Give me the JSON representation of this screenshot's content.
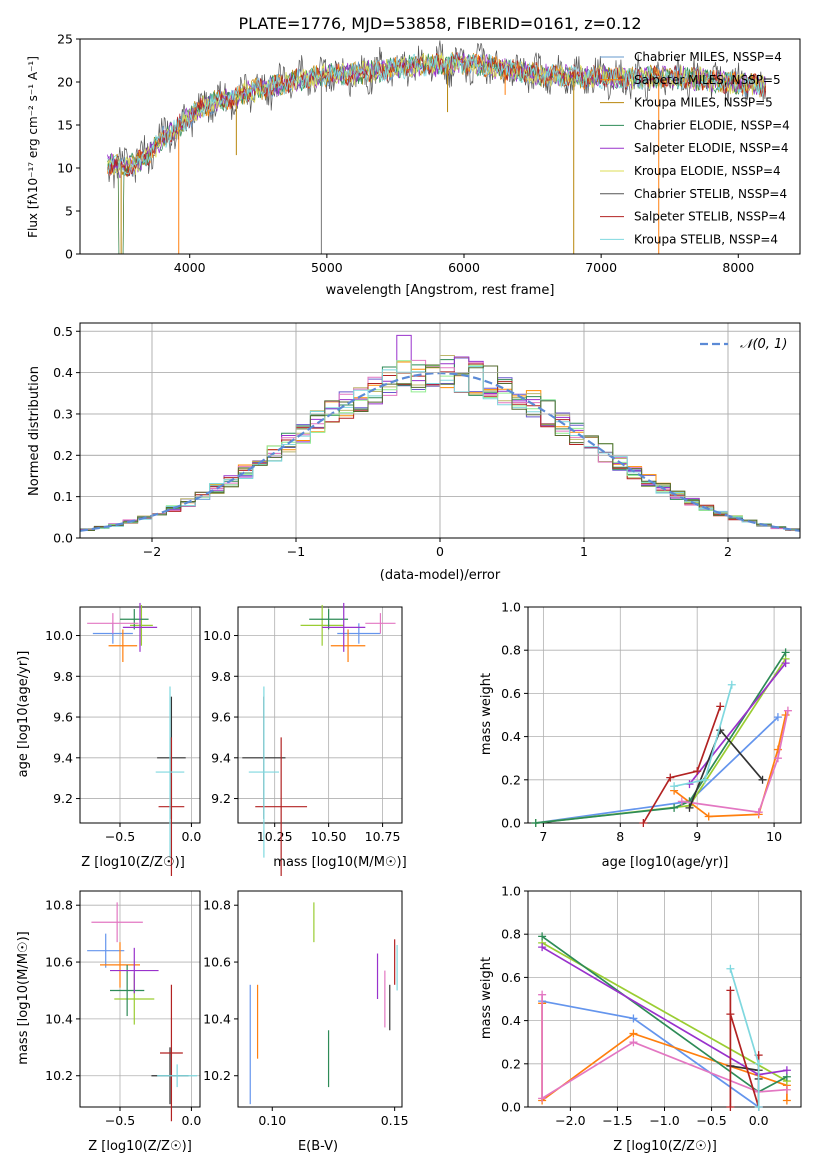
{
  "figure": {
    "title": "PLATE=1776, MJD=53858, FIBERID=0161, z=0.12"
  },
  "colors": {
    "spectrum_models": [
      "#6699cc",
      "#ff7f0e",
      "#b8860b",
      "#2e8b57",
      "#9932cc",
      "#dddd55",
      "#555555",
      "#b22222",
      "#7fd8df"
    ],
    "hist_models": [
      "#6a5acd",
      "#ff8c00",
      "#bdb76b",
      "#2e8b57",
      "#9932cc",
      "#e377c2",
      "#b22222",
      "#90ee90",
      "#7fd8df",
      "#556b2f"
    ],
    "points": [
      "#6495ed",
      "#ff7f0e",
      "#9acd32",
      "#2e8b57",
      "#9932cc",
      "#e377c2",
      "#333333",
      "#b22222",
      "#7fd8df"
    ],
    "gauss": "#5b8ad6",
    "grid": "#b0b0b0"
  },
  "chart_data": [
    {
      "id": "spectrum",
      "type": "line",
      "title": "PLATE=1776, MJD=53858, FIBERID=0161, z=0.12",
      "xlabel": "wavelength [Angstrom, rest frame]",
      "ylabel": "Flux [fλ10⁻¹⁷ erg cm⁻² s⁻¹ A⁻¹]",
      "xlim": [
        3200,
        8450
      ],
      "ylim": [
        0,
        25
      ],
      "xticks": [
        4000,
        5000,
        6000,
        7000,
        8000
      ],
      "yticks": [
        0,
        5,
        10,
        15,
        20,
        25
      ],
      "grid": false,
      "legend_position": "top-right",
      "legend": [
        "Chabrier MILES, NSSP=4",
        "Salpeter MILES, NSSP=5",
        "Kroupa MILES, NSSP=5",
        "Chabrier ELODIE, NSSP=4",
        "Salpeter ELODIE, NSSP=4",
        "Kroupa ELODIE, NSSP=4",
        "Chabrier STELIB, NSSP=4",
        "Salpeter STELIB, NSSP=4",
        "Kroupa STELIB, NSSP=4"
      ],
      "continuum": {
        "x": [
          3400,
          3500,
          3600,
          3700,
          3800,
          3900,
          4000,
          4100,
          4200,
          4300,
          4400,
          4600,
          4800,
          5000,
          5200,
          5400,
          5600,
          5800,
          6000,
          6200,
          6400,
          6600,
          6800,
          7000,
          7200,
          7400,
          7600,
          7800,
          8000,
          8200
        ],
        "y": [
          10.5,
          10.2,
          10.5,
          11.5,
          13.5,
          14.5,
          16,
          17.2,
          17.8,
          18,
          18.8,
          19.5,
          20.3,
          20.8,
          21,
          21.4,
          21.8,
          22,
          22.2,
          21.8,
          21.2,
          20.8,
          20.6,
          20.6,
          20.4,
          20.6,
          20.5,
          20.2,
          19.8,
          19.6
        ]
      },
      "spikes": [
        {
          "x": 3500,
          "y": 0
        },
        {
          "x": 3920,
          "y": 0
        },
        {
          "x": 4340,
          "y": 11.5
        },
        {
          "x": 4960,
          "y": 0
        },
        {
          "x": 5880,
          "y": 16.5
        },
        {
          "x": 6300,
          "y": 18.5
        },
        {
          "x": 6800,
          "y": 0
        },
        {
          "x": 7420,
          "y": 0
        }
      ]
    },
    {
      "id": "residuals",
      "type": "line",
      "xlabel": "(data-model)/error",
      "ylabel": "Normed distribution",
      "xlim": [
        -2.5,
        2.5
      ],
      "ylim": [
        0,
        0.52
      ],
      "xticks": [
        -2,
        -1,
        0,
        1,
        2
      ],
      "yticks": [
        0.0,
        0.1,
        0.2,
        0.3,
        0.4,
        0.5
      ],
      "grid": true,
      "legend_position": "top-right",
      "legend": [
        "𝒩(0, 1)"
      ],
      "gauss": {
        "mu": 0,
        "sigma": 1
      }
    },
    {
      "id": "age_vs_Z",
      "type": "scatter",
      "xlabel": "Z [log10(Z/Z☉)]",
      "ylabel": "age  [log10(age/yr)]",
      "xlim": [
        -0.78,
        0.06
      ],
      "ylim": [
        9.08,
        10.14
      ],
      "xticks": [
        -0.5,
        0.0
      ],
      "yticks": [
        9.2,
        9.4,
        9.6,
        9.8,
        10.0
      ],
      "grid": true,
      "points": [
        {
          "x": -0.55,
          "y": 10.01,
          "xerr": 0.14,
          "yerr": 0.05
        },
        {
          "x": -0.48,
          "y": 9.95,
          "xerr": 0.1,
          "yerr": 0.08
        },
        {
          "x": -0.35,
          "y": 10.05,
          "xerr": 0.08,
          "yerr": 0.1
        },
        {
          "x": -0.4,
          "y": 10.08,
          "xerr": 0.1,
          "yerr": 0.05
        },
        {
          "x": -0.36,
          "y": 10.04,
          "xerr": 0.12,
          "yerr": 0.12
        },
        {
          "x": -0.55,
          "y": 10.06,
          "xerr": 0.18,
          "yerr": 0.05
        },
        {
          "x": -0.14,
          "y": 9.4,
          "xerr": 0.1,
          "yerr": 0.3
        },
        {
          "x": -0.14,
          "y": 9.16,
          "xerr": 0.09,
          "yerr": 0.34
        },
        {
          "x": -0.15,
          "y": 9.33,
          "xerr": 0.1,
          "yerr": 0.42
        }
      ]
    },
    {
      "id": "age_vs_mass",
      "type": "scatter",
      "xlabel": "mass [log10(M/M☉)]",
      "ylabel": "",
      "xlim": [
        10.08,
        10.84
      ],
      "ylim": [
        9.08,
        10.14
      ],
      "xticks": [
        10.25,
        10.5,
        10.75
      ],
      "yticks": [
        9.2,
        9.4,
        9.6,
        9.8,
        10.0
      ],
      "grid": true,
      "points": [
        {
          "x": 10.64,
          "y": 10.01,
          "xerr": 0.1,
          "yerr": 0.05
        },
        {
          "x": 10.59,
          "y": 9.95,
          "xerr": 0.08,
          "yerr": 0.08
        },
        {
          "x": 10.47,
          "y": 10.05,
          "xerr": 0.1,
          "yerr": 0.1
        },
        {
          "x": 10.5,
          "y": 10.08,
          "xerr": 0.09,
          "yerr": 0.05
        },
        {
          "x": 10.57,
          "y": 10.04,
          "xerr": 0.1,
          "yerr": 0.12
        },
        {
          "x": 10.74,
          "y": 10.06,
          "xerr": 0.07,
          "yerr": 0.05
        },
        {
          "x": 10.2,
          "y": 9.4,
          "xerr": 0.1,
          "yerr": 0.3
        },
        {
          "x": 10.28,
          "y": 9.16,
          "xerr": 0.12,
          "yerr": 0.34
        },
        {
          "x": 10.2,
          "y": 9.33,
          "xerr": 0.07,
          "yerr": 0.42
        }
      ]
    },
    {
      "id": "weights_vs_age",
      "type": "line",
      "xlabel": "age  [log10(age/yr)]",
      "ylabel": "mass weight",
      "xlim": [
        6.8,
        10.35
      ],
      "ylim": [
        0,
        1.0
      ],
      "xticks": [
        7,
        8,
        9,
        10
      ],
      "yticks": [
        0.0,
        0.2,
        0.4,
        0.6,
        0.8,
        1.0
      ],
      "grid": true,
      "series": [
        {
          "x": [
            6.9,
            8.9,
            10.05
          ],
          "y": [
            0.0,
            0.1,
            0.49
          ]
        },
        {
          "x": [
            8.7,
            9.15,
            9.8,
            10.05,
            10.15
          ],
          "y": [
            0.15,
            0.03,
            0.04,
            0.34,
            0.5
          ]
        },
        {
          "x": [
            6.9,
            8.9,
            10.15
          ],
          "y": [
            0.0,
            0.08,
            0.76
          ]
        },
        {
          "x": [
            6.9,
            8.7,
            8.9,
            10.15
          ],
          "y": [
            0.0,
            0.07,
            0.1,
            0.79
          ]
        },
        {
          "x": [
            8.9,
            10.15
          ],
          "y": [
            0.18,
            0.74
          ]
        },
        {
          "x": [
            8.8,
            9.8,
            10.05,
            10.18
          ],
          "y": [
            0.1,
            0.05,
            0.3,
            0.52
          ]
        },
        {
          "x": [
            8.9,
            9.3,
            9.85
          ],
          "y": [
            0.07,
            0.43,
            0.2
          ]
        },
        {
          "x": [
            8.3,
            8.65,
            9.0,
            9.3
          ],
          "y": [
            0.0,
            0.21,
            0.24,
            0.54
          ]
        },
        {
          "x": [
            8.7,
            9.1,
            9.45
          ],
          "y": [
            0.17,
            0.2,
            0.64
          ]
        }
      ]
    },
    {
      "id": "mass_vs_Z",
      "type": "scatter",
      "xlabel": "Z [log10(Z/Z☉)]",
      "ylabel": "mass [log10(M/M☉)]",
      "xlim": [
        -0.78,
        0.06
      ],
      "ylim": [
        10.09,
        10.85
      ],
      "xticks": [
        -0.5,
        0.0
      ],
      "yticks": [
        10.2,
        10.4,
        10.6,
        10.8
      ],
      "grid": true,
      "points": [
        {
          "x": -0.6,
          "y": 10.64,
          "xerr": 0.13,
          "yerr": 0.06
        },
        {
          "x": -0.5,
          "y": 10.59,
          "xerr": 0.14,
          "yerr": 0.08
        },
        {
          "x": -0.4,
          "y": 10.47,
          "xerr": 0.14,
          "yerr": 0.09
        },
        {
          "x": -0.45,
          "y": 10.5,
          "xerr": 0.12,
          "yerr": 0.09
        },
        {
          "x": -0.4,
          "y": 10.57,
          "xerr": 0.17,
          "yerr": 0.08
        },
        {
          "x": -0.52,
          "y": 10.74,
          "xerr": 0.18,
          "yerr": 0.07
        },
        {
          "x": -0.15,
          "y": 10.2,
          "xerr": 0.13,
          "yerr": 0.1
        },
        {
          "x": -0.14,
          "y": 10.28,
          "xerr": 0.08,
          "yerr": 0.24
        },
        {
          "x": -0.1,
          "y": 10.2,
          "xerr": 0.14,
          "yerr": 0.04
        }
      ]
    },
    {
      "id": "mass_vs_EBV",
      "type": "scatter",
      "xlabel": "E(B-V)",
      "ylabel": "",
      "xlim": [
        0.086,
        0.153
      ],
      "ylim": [
        10.09,
        10.85
      ],
      "xticks": [
        0.1,
        0.15
      ],
      "yticks": [
        10.2,
        10.4,
        10.6,
        10.8
      ],
      "grid": false,
      "points": [
        {
          "x": 0.091,
          "y": 10.31,
          "yerr": 0.21
        },
        {
          "x": 0.094,
          "y": 10.39,
          "yerr": 0.13
        },
        {
          "x": 0.117,
          "y": 10.74,
          "yerr": 0.07
        },
        {
          "x": 0.123,
          "y": 10.26,
          "yerr": 0.1
        },
        {
          "x": 0.143,
          "y": 10.55,
          "yerr": 0.08
        },
        {
          "x": 0.146,
          "y": 10.47,
          "yerr": 0.1
        },
        {
          "x": 0.148,
          "y": 10.44,
          "yerr": 0.08
        },
        {
          "x": 0.15,
          "y": 10.6,
          "yerr": 0.08
        },
        {
          "x": 0.151,
          "y": 10.58,
          "yerr": 0.08
        }
      ]
    },
    {
      "id": "weights_vs_Z",
      "type": "line",
      "xlabel": "Z [log10(Z/Z☉)]",
      "ylabel": "mass weight",
      "xlim": [
        -2.45,
        0.45
      ],
      "ylim": [
        0,
        1.0
      ],
      "xticks": [
        -2.0,
        -1.5,
        -1.0,
        -0.5,
        0.0
      ],
      "yticks": [
        0.0,
        0.2,
        0.4,
        0.6,
        0.8,
        1.0
      ],
      "grid": true,
      "series": [
        {
          "x": [
            -2.3,
            -1.33,
            0.0
          ],
          "y": [
            0.49,
            0.41,
            0.0
          ]
        },
        {
          "x": [
            -2.3,
            -2.3,
            -1.33,
            0.3,
            0.3
          ],
          "y": [
            0.48,
            0.03,
            0.34,
            0.1,
            0.03
          ]
        },
        {
          "x": [
            -2.3,
            0.3
          ],
          "y": [
            0.76,
            0.12
          ]
        },
        {
          "x": [
            -2.3,
            0.0,
            0.3
          ],
          "y": [
            0.79,
            0.07,
            0.14
          ]
        },
        {
          "x": [
            -2.3,
            0.0,
            0.3
          ],
          "y": [
            0.74,
            0.15,
            0.17
          ]
        },
        {
          "x": [
            -2.3,
            -2.3,
            -1.33,
            0.0,
            0.3
          ],
          "y": [
            0.52,
            0.04,
            0.3,
            0.07,
            0.08
          ]
        },
        {
          "x": [
            -0.3,
            0.0,
            0.0
          ],
          "y": [
            0.19,
            0.17,
            0.13
          ]
        },
        {
          "x": [
            -0.3,
            -0.3,
            -0.3,
            0.0,
            0.0
          ],
          "y": [
            0.54,
            0.0,
            0.43,
            0.0,
            0.24
          ]
        },
        {
          "x": [
            -0.3,
            0.0,
            0.0
          ],
          "y": [
            0.64,
            0.2,
            0.0
          ]
        }
      ]
    }
  ]
}
